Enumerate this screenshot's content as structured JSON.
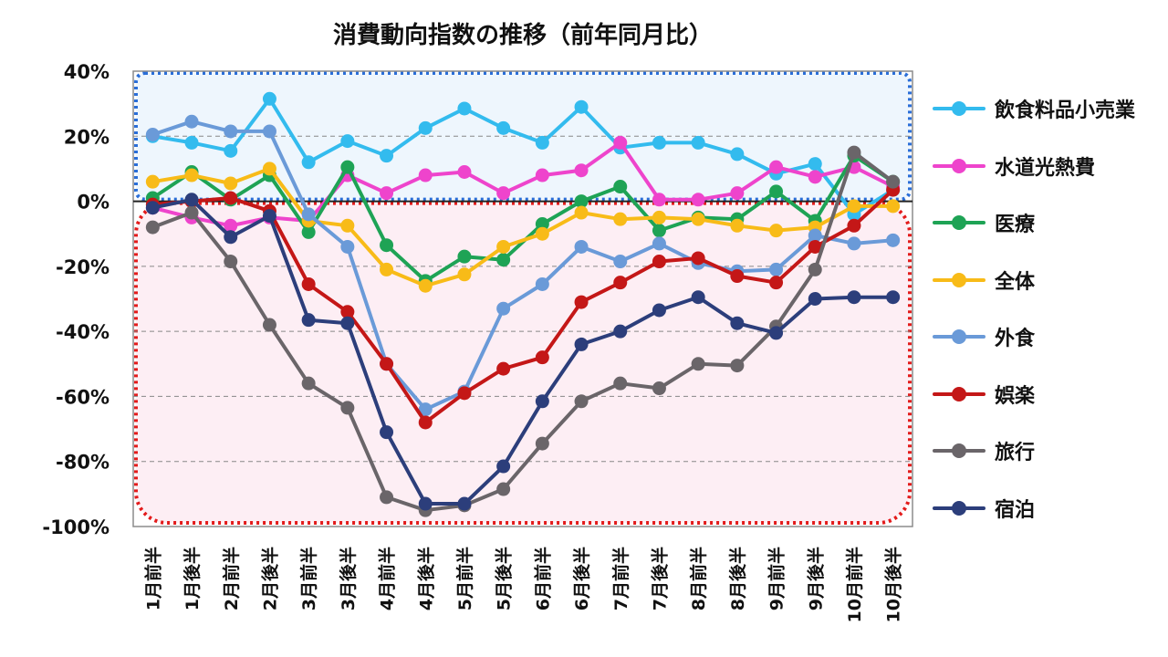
{
  "chart_data": {
    "type": "line",
    "title": "消費動向指数の推移（前年同月比）",
    "xlabel": "",
    "ylabel": "",
    "ylim": [
      -100,
      40
    ],
    "yticks": [
      40,
      20,
      0,
      -20,
      -40,
      -60,
      -80,
      -100
    ],
    "ytick_labels": [
      "40%",
      "20%",
      "0%",
      "-20%",
      "-40%",
      "-60%",
      "-80%",
      "-100%"
    ],
    "grid": true,
    "legend_position": "right",
    "categories": [
      "1月前半",
      "1月後半",
      "2月前半",
      "2月後半",
      "3月前半",
      "3月後半",
      "4月前半",
      "4月後半",
      "5月前半",
      "5月後半",
      "6月前半",
      "6月後半",
      "7月前半",
      "7月後半",
      "8月前半",
      "8月後半",
      "9月前半",
      "9月後半",
      "10月前半",
      "10月後半"
    ],
    "series": [
      {
        "name": "飲食料品小売業",
        "color": "#33bbee",
        "values": [
          20,
          18,
          15.5,
          31.5,
          12,
          18.5,
          14,
          22.5,
          28.5,
          22.5,
          18,
          29,
          16.5,
          18,
          18,
          14.5,
          8.5,
          11.5,
          -4,
          3.5
        ]
      },
      {
        "name": "水道光熱費",
        "color": "#ee44cc",
        "values": [
          -2,
          -5,
          -7.5,
          -5,
          -6,
          8,
          2.5,
          8,
          9,
          2.5,
          8,
          9.5,
          18,
          0.5,
          0.5,
          2.5,
          10.5,
          7.5,
          10.5,
          4.5
        ]
      },
      {
        "name": "医療",
        "color": "#1ea355",
        "values": [
          1,
          9,
          0.5,
          8,
          -9.5,
          10.5,
          -13.5,
          -24.5,
          -17,
          -18,
          -7,
          0,
          4.5,
          -9,
          -5,
          -5.5,
          3,
          -6,
          14,
          6
        ]
      },
      {
        "name": "全体",
        "color": "#f8bb18",
        "values": [
          6,
          8,
          5.5,
          10,
          -6,
          -7.5,
          -21,
          -26,
          -22.5,
          -14,
          -10,
          -3.5,
          -5.5,
          -5,
          -5.5,
          -7.5,
          -9,
          -8,
          -1.5,
          -1.5
        ]
      },
      {
        "name": "外食",
        "color": "#6a9ad8",
        "values": [
          20.5,
          24.5,
          21.5,
          21.5,
          -4,
          -14,
          -50,
          -64,
          -58.5,
          -33,
          -25.5,
          -14,
          -18.5,
          -13,
          -19,
          -21.5,
          -21,
          -10.5,
          -13,
          -12
        ]
      },
      {
        "name": "娯楽",
        "color": "#c41717",
        "values": [
          -1,
          0,
          1,
          -3,
          -25.5,
          -34,
          -50,
          -68,
          -59,
          -51.5,
          -48,
          -31,
          -25,
          -18.5,
          -17.5,
          -23,
          -25,
          -14,
          -7.5,
          3.5
        ]
      },
      {
        "name": "旅行",
        "color": "#6a6569",
        "values": [
          -8,
          -3.5,
          -18.5,
          -38,
          -56,
          -63.5,
          -91,
          -95,
          -93.5,
          -88.5,
          -74.5,
          -61.5,
          -56,
          -57.5,
          -50,
          -50.5,
          -38.5,
          -21,
          15,
          6
        ]
      },
      {
        "name": "宿泊",
        "color": "#2c3e7b",
        "values": [
          -2,
          0.5,
          -11,
          -4.5,
          -36.5,
          -37.5,
          -71,
          -93,
          -93,
          -81.5,
          -61.5,
          -44,
          -40,
          -33.5,
          -29.5,
          -37.5,
          -40.5,
          -30,
          -29.5,
          -29.5
        ]
      }
    ],
    "colors": {
      "positive_region_fill": "#eef6fd",
      "positive_region_border": "#2a6ed8",
      "negative_region_fill": "#fdeef4",
      "negative_region_border": "#e31b1b",
      "gridline": "#888888"
    }
  }
}
